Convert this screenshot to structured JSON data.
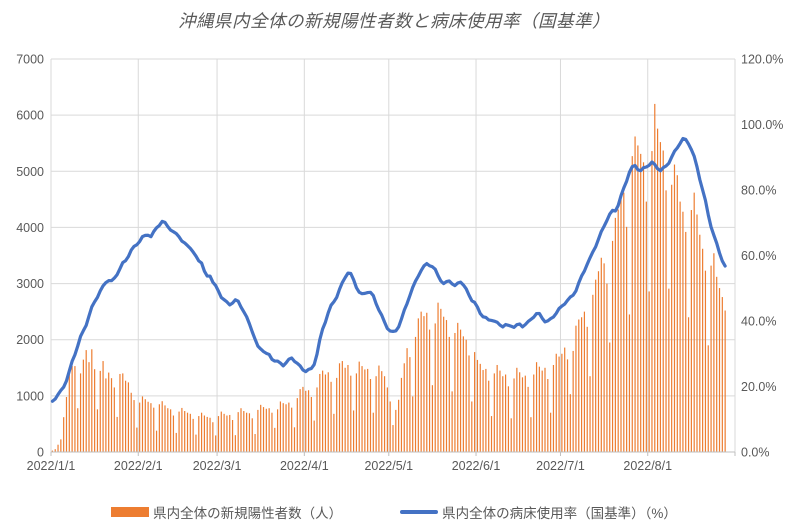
{
  "title": "沖縄県内全体の新規陽性者数と病床使用率（国基準）",
  "colors": {
    "bar": "#ED7D31",
    "line": "#4472C4",
    "gridline": "#D9D9D9",
    "axis_line": "#BFBFBF",
    "axis_text": "#595959",
    "title_text": "#595959"
  },
  "legend": {
    "position": "bottom-center",
    "items": [
      {
        "label": "県内全体の新規陽性者数（人）",
        "swatch": "bar"
      },
      {
        "label": "県内全体の病床使用率（国基準）（%）",
        "swatch": "line"
      }
    ]
  },
  "chart_data": {
    "type": "bar",
    "subtype": "combo-bar-line-dual-axis",
    "title": "沖縄県内全体の新規陽性者数と病床使用率（国基準）",
    "grid": "on",
    "x_axis": {
      "kind": "daily-date",
      "start_label": "2022/1/1",
      "month_days": [
        31,
        28,
        31,
        30,
        31,
        30,
        31,
        31
      ],
      "total_days": 243,
      "tick_labels": [
        "2022/1/1",
        "2022/2/1",
        "2022/3/1",
        "2022/4/1",
        "2022/5/1",
        "2022/6/1",
        "2022/7/1",
        "2022/8/1"
      ]
    },
    "left_axis": {
      "min": 0,
      "max": 7000,
      "step": 1000,
      "tick_labels": [
        "0",
        "1000",
        "2000",
        "3000",
        "4000",
        "5000",
        "6000",
        "7000"
      ]
    },
    "right_axis": {
      "min": 0,
      "max": 120,
      "step": 20,
      "tick_labels": [
        "0.0%",
        "20.0%",
        "40.0%",
        "60.0%",
        "80.0%",
        "100.0%",
        "120.0%"
      ]
    },
    "series": [
      {
        "name": "県内全体の新規陽性者数（人）",
        "type": "bar",
        "axis": "left",
        "color": "#ED7D31",
        "values": [
          25,
          50,
          130,
          225,
          620,
          980,
          1415,
          1535,
          1530,
          780,
          1400,
          1645,
          1815,
          1600,
          1830,
          1475,
          760,
          1445,
          1620,
          1310,
          1415,
          1315,
          1150,
          625,
          1390,
          1400,
          1270,
          1240,
          1055,
          925,
          435,
          880,
          990,
          940,
          895,
          870,
          790,
          380,
          850,
          905,
          830,
          780,
          760,
          650,
          340,
          720,
          785,
          730,
          700,
          680,
          590,
          310,
          640,
          700,
          650,
          625,
          610,
          530,
          295,
          640,
          720,
          680,
          650,
          660,
          570,
          300,
          710,
          780,
          730,
          700,
          690,
          600,
          320,
          750,
          840,
          800,
          770,
          780,
          700,
          430,
          760,
          900,
          870,
          850,
          880,
          790,
          440,
          960,
          1120,
          1160,
          1090,
          1100,
          980,
          560,
          1150,
          1390,
          1450,
          1380,
          1420,
          1250,
          680,
          1320,
          1580,
          1620,
          1500,
          1550,
          1360,
          740,
          1400,
          1610,
          1530,
          1470,
          1480,
          1300,
          700,
          1350,
          1540,
          1440,
          1350,
          1150,
          900,
          480,
          750,
          930,
          1320,
          1580,
          1850,
          1690,
          990,
          2050,
          2380,
          2500,
          2420,
          2480,
          2180,
          1190,
          2290,
          2660,
          2550,
          2410,
          2350,
          2050,
          1080,
          2120,
          2300,
          2180,
          2060,
          2000,
          1720,
          900,
          1780,
          1640,
          1570,
          1460,
          1480,
          1270,
          640,
          1400,
          1550,
          1450,
          1350,
          1380,
          1170,
          600,
          1310,
          1500,
          1420,
          1330,
          1360,
          1160,
          620,
          1380,
          1600,
          1520,
          1450,
          1500,
          1300,
          700,
          1550,
          1750,
          1700,
          1750,
          1860,
          1650,
          1030,
          1800,
          2250,
          2360,
          2400,
          2500,
          2230,
          1350,
          2800,
          3070,
          3220,
          3460,
          3360,
          3000,
          1950,
          3760,
          4170,
          4320,
          4510,
          4620,
          4010,
          2450,
          5270,
          5620,
          5460,
          5310,
          5160,
          4460,
          2860,
          5360,
          6200,
          5760,
          5520,
          5370,
          4660,
          2910,
          4760,
          5120,
          4930,
          4460,
          4280,
          3920,
          2400,
          4310,
          4620,
          4230,
          3870,
          3620,
          3230,
          1900,
          3320,
          3540,
          3120,
          2920,
          2760,
          2520
        ]
      },
      {
        "name": "県内全体の病床使用率（国基準）（%）",
        "type": "line",
        "axis": "right",
        "color": "#4472C4",
        "values": [
          15.5,
          16.5,
          17.5,
          18.5,
          20,
          22,
          24.5,
          27.5,
          30,
          32.5,
          35,
          37,
          39,
          41.5,
          44,
          46,
          47.5,
          49,
          50.5,
          52,
          52.5,
          52,
          53,
          54.5,
          56,
          57.5,
          58.5,
          60,
          61.5,
          62.5,
          63.5,
          64.5,
          65.5,
          66,
          66.5,
          65.8,
          67,
          68.5,
          69.5,
          70.3,
          69.8,
          69,
          68,
          67,
          66.5,
          66,
          64.5,
          63.5,
          63,
          62.5,
          61,
          59.5,
          58.5,
          58,
          55,
          53.5,
          54,
          52,
          50.5,
          49,
          47.5,
          46.5,
          45.5,
          45,
          45.8,
          46.3,
          45.8,
          44.5,
          43,
          41,
          39,
          37,
          34.5,
          32,
          31.5,
          31,
          30,
          29.5,
          28.5,
          28,
          27.5,
          27,
          26.6,
          27.3,
          28,
          28.7,
          28,
          27,
          26,
          25.2,
          24.8,
          25,
          25.3,
          27,
          30,
          34,
          37.5,
          40,
          42.5,
          44.5,
          46,
          47.5,
          49.5,
          51.5,
          53.5,
          54.8,
          54.2,
          52.5,
          50.5,
          48.8,
          48,
          48.5,
          49,
          48.6,
          47.5,
          45.5,
          43.5,
          41.5,
          39.5,
          38,
          37,
          36.5,
          37,
          38.5,
          40.5,
          43,
          45.5,
          48,
          50,
          52,
          54,
          55.5,
          56.5,
          57.5,
          57.2,
          56.5,
          55.5,
          54,
          52.5,
          51.2,
          51.8,
          52.5,
          51.5,
          50.5,
          51.5,
          52.2,
          51,
          49.5,
          48,
          46.5,
          45.5,
          44,
          42.5,
          41.5,
          40.8,
          40.2,
          40.5,
          40,
          39.3,
          38.8,
          38.5,
          38.8,
          38.4,
          38.6,
          38.3,
          38.6,
          38.9,
          38.5,
          39,
          39.5,
          40.5,
          41.5,
          42.2,
          42,
          41,
          40,
          39.8,
          40.5,
          41.5,
          42.5,
          43.5,
          44.5,
          45.5,
          46.3,
          47,
          48,
          49.5,
          51.5,
          53.5,
          55.5,
          57.5,
          59,
          61,
          63,
          65,
          67,
          69,
          71,
          72.5,
          73.5,
          73.8,
          75.5,
          78,
          80.5,
          83,
          85.5,
          86.8,
          87.5,
          86.5,
          85.8,
          86.5,
          87.2,
          87.8,
          88.3,
          87.6,
          86.8,
          86,
          86.5,
          87.3,
          88.5,
          90,
          91.5,
          93,
          94.5,
          95.5,
          95.2,
          94.3,
          92.5,
          90,
          87,
          83.5,
          80,
          76.5,
          72.5,
          69,
          66,
          63.5,
          61,
          58.5,
          56.5
        ]
      }
    ]
  }
}
